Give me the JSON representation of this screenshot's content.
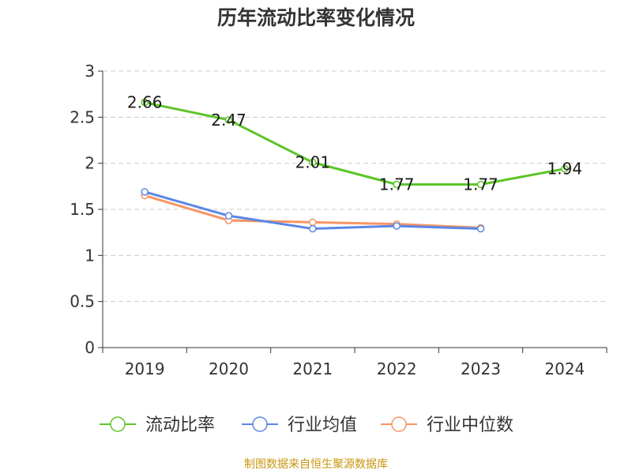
{
  "source_note": {
    "text": "制图数据来自恒生聚源数据库",
    "color": "#c8960c"
  },
  "chart_data": {
    "type": "line",
    "title": "历年流动比率变化情况",
    "xlabel": "",
    "ylabel": "",
    "categories": [
      "2019",
      "2020",
      "2021",
      "2022",
      "2023",
      "2024"
    ],
    "ylim": [
      0,
      3
    ],
    "yticks": [
      0,
      0.5,
      1,
      1.5,
      2,
      2.5,
      3
    ],
    "ytick_labels": [
      "0",
      "0.5",
      "1",
      "1.5",
      "2",
      "2.5",
      "3"
    ],
    "grid": true,
    "legend_position": "bottom",
    "series": [
      {
        "name": "流动比率",
        "color": "#5cc527",
        "values": [
          2.66,
          2.47,
          2.01,
          1.77,
          1.77,
          1.94
        ],
        "labels": [
          "2.66",
          "2.47",
          "2.01",
          "1.77",
          "1.77",
          "1.94"
        ],
        "show_labels": true
      },
      {
        "name": "行业均值",
        "color": "#5b87e6",
        "values": [
          1.69,
          1.43,
          1.29,
          1.32,
          1.29,
          null
        ],
        "show_labels": false
      },
      {
        "name": "行业中位数",
        "color": "#f79563",
        "values": [
          1.65,
          1.38,
          1.36,
          1.34,
          1.3,
          null
        ],
        "show_labels": false
      }
    ]
  }
}
